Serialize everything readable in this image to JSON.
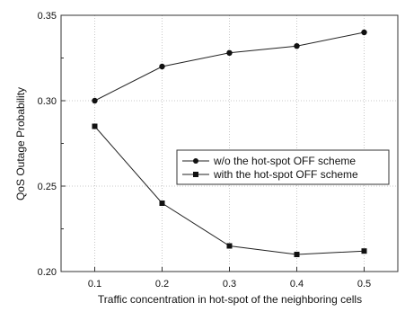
{
  "chart_data": {
    "type": "line",
    "xlabel": "Traffic concentration in hot-spot of the neighboring cells",
    "ylabel": "QoS Outage Probability",
    "x": [
      0.1,
      0.2,
      0.3,
      0.4,
      0.5
    ],
    "xlim": [
      0.05,
      0.55
    ],
    "ylim": [
      0.2,
      0.35
    ],
    "x_ticks": [
      "0.1",
      "0.2",
      "0.3",
      "0.4",
      "0.5"
    ],
    "y_ticks": [
      "0.20",
      "0.25",
      "0.30",
      "0.35"
    ],
    "grid": true,
    "legend_position": "center-right",
    "series": [
      {
        "name": "w/o the hot-spot OFF scheme",
        "marker": "circle",
        "color": "#222222",
        "values": [
          0.3,
          0.32,
          0.328,
          0.332,
          0.34
        ]
      },
      {
        "name": "with the hot-spot OFF scheme",
        "marker": "square",
        "color": "#222222",
        "values": [
          0.285,
          0.24,
          0.215,
          0.21,
          0.212
        ]
      }
    ]
  }
}
